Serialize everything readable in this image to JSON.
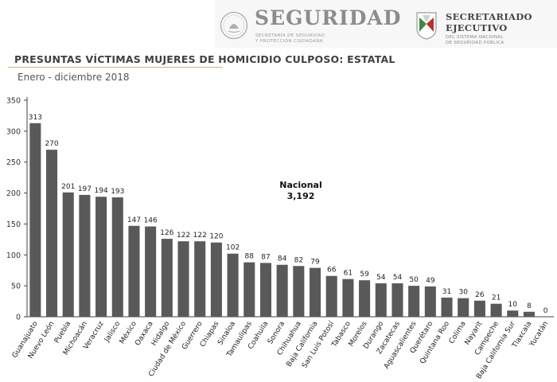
{
  "header": {
    "seguridad_title": "SEGURIDAD",
    "seguridad_sub_1": "SECRETARÍA DE SEGURIDAD",
    "seguridad_sub_2": "Y PROTECCIÓN CIUDADANA",
    "secretariado_line1": "SECRETARIADO",
    "secretariado_line2": "EJECUTIVO",
    "secretariado_sub_1": "DEL SISTEMA NACIONAL",
    "secretariado_sub_2": "DE SEGURIDAD PÚBLICA"
  },
  "chart_data": {
    "type": "bar",
    "title": "PRESUNTAS VÍCTIMAS MUJERES DE HOMICIDIO CULPOSO: ESTATAL",
    "subtitle": "Enero - diciembre 2018",
    "xlabel": "",
    "ylabel": "",
    "ylim": [
      0,
      350
    ],
    "yticks": [
      0,
      50,
      100,
      150,
      200,
      250,
      300,
      350
    ],
    "categories": [
      "Guanajuato",
      "Nuevo León",
      "Puebla",
      "Michoacán",
      "Veracruz",
      "Jalisco",
      "México",
      "Oaxaca",
      "Hidalgo",
      "Ciudad de México",
      "Guerrero",
      "Chiapas",
      "Sinaloa",
      "Tamaulipas",
      "Coahuila",
      "Sonora",
      "Chihuahua",
      "Baja California",
      "San Luis Potosí",
      "Tabasco",
      "Morelos",
      "Durango",
      "Zacatecas",
      "Aguascalientes",
      "Querétaro",
      "Quintana Roo",
      "Colima",
      "Nayarit",
      "Campeche",
      "Baja California Sur",
      "Tlaxcala",
      "Yucatán"
    ],
    "values": [
      313,
      270,
      201,
      197,
      194,
      193,
      147,
      146,
      126,
      122,
      122,
      120,
      102,
      88,
      87,
      84,
      82,
      79,
      66,
      61,
      59,
      54,
      54,
      50,
      49,
      31,
      30,
      26,
      21,
      10,
      8,
      0
    ],
    "annotation": {
      "label": "Nacional",
      "value": "3,192"
    },
    "colors": {
      "bar": "#595959",
      "axis": "#404040",
      "title": "#404040"
    }
  }
}
